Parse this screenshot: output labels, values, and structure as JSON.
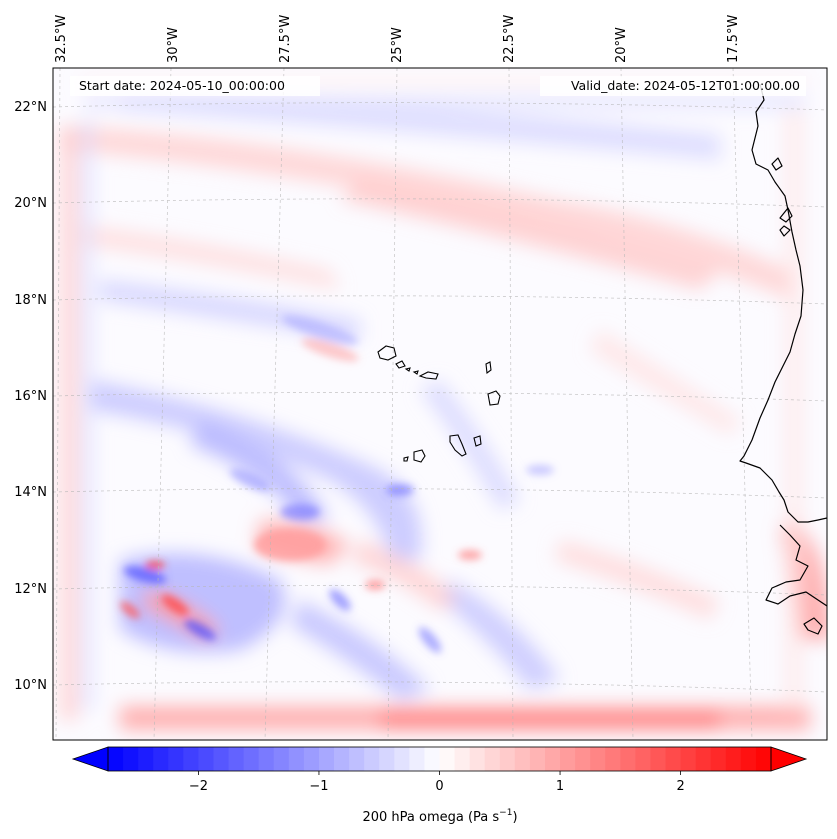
{
  "map": {
    "start_label": "Start date: 2024-05-10_00:00:00",
    "valid_label": "Valid_date: 2024-05-12T01:00:00.00",
    "lon_ticks": [
      "32.5°W",
      "30°W",
      "27.5°W",
      "25°W",
      "22.5°W",
      "20°W",
      "17.5°W"
    ],
    "lat_ticks": [
      "22°N",
      "20°N",
      "18°N",
      "16°N",
      "14°N",
      "12°N",
      "10°N"
    ],
    "field": "200 hPa omega",
    "units": "Pa s⁻¹",
    "gridlines": true,
    "coastline_color": "#000000"
  },
  "colorbar": {
    "label_main": "200 hPa omega (Pa s",
    "label_sup": "−1",
    "label_end": ")",
    "ticks": [
      "−2",
      "−1",
      "0",
      "1",
      "2"
    ],
    "tick_values": [
      -2,
      -1,
      0,
      1,
      2
    ],
    "range": [
      -2.75,
      2.75
    ],
    "cmap_low": "#0000ff",
    "cmap_mid": "#ffffff",
    "cmap_high": "#ff0000",
    "extend": "both"
  }
}
